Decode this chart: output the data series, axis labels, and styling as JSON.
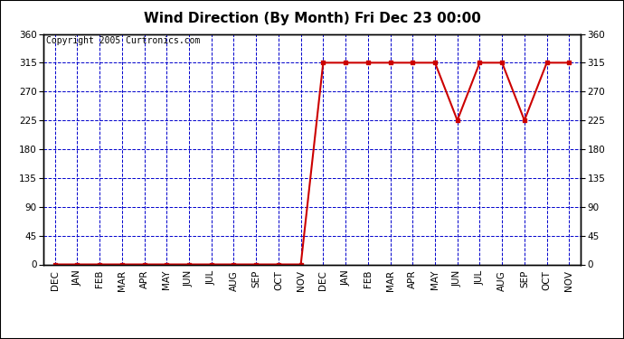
{
  "title": "Wind Direction (By Month) Fri Dec 23 00:00",
  "copyright": "Copyright 2005 Curtronics.com",
  "x_labels": [
    "DEC",
    "JAN",
    "FEB",
    "MAR",
    "APR",
    "MAY",
    "JUN",
    "JUL",
    "AUG",
    "SEP",
    "OCT",
    "NOV",
    "DEC",
    "JAN",
    "FEB",
    "MAR",
    "APR",
    "MAY",
    "JUN",
    "JUL",
    "AUG",
    "SEP",
    "OCT",
    "NOV"
  ],
  "y_values": [
    0,
    0,
    0,
    0,
    0,
    0,
    0,
    0,
    0,
    0,
    0,
    0,
    315,
    315,
    315,
    315,
    315,
    315,
    225,
    315,
    315,
    225,
    315,
    315
  ],
  "y_ticks": [
    0,
    45,
    90,
    135,
    180,
    225,
    270,
    315,
    360
  ],
  "ylim": [
    0,
    360
  ],
  "line_color": "#cc0000",
  "marker": "s",
  "marker_size": 3,
  "grid_color": "#0000cc",
  "background_color": "#ffffff",
  "title_fontsize": 11,
  "copyright_fontsize": 7,
  "tick_fontsize": 7.5,
  "fig_width": 6.9,
  "fig_height": 3.75,
  "dpi": 100
}
